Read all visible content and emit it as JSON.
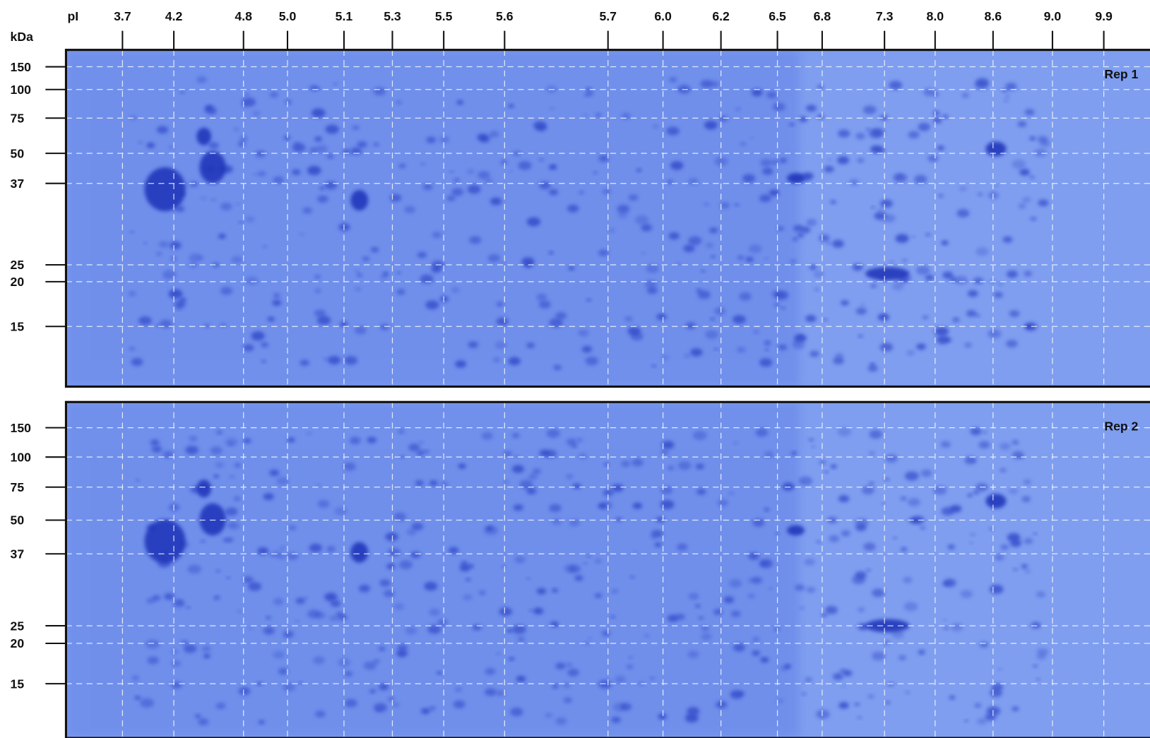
{
  "axis": {
    "pi_label": "pI",
    "kda_label": "kDa",
    "pi_ticks": [
      "3.7",
      "4.2",
      "4.8",
      "5.0",
      "5.1",
      "5.3",
      "5.5",
      "5.6",
      "5.7",
      "6.0",
      "6.2",
      "6.5",
      "6.8",
      "7.3",
      "8.0",
      "8.6",
      "9.0",
      "9.9"
    ]
  },
  "panels": [
    {
      "label": "Rep 1",
      "kda_ticks": [
        "150",
        "100",
        "75",
        "50",
        "37",
        "25",
        "20",
        "15"
      ]
    },
    {
      "label": "Rep 2",
      "kda_ticks": [
        "150",
        "100",
        "75",
        "50",
        "37",
        "25",
        "20",
        "15"
      ]
    }
  ]
}
